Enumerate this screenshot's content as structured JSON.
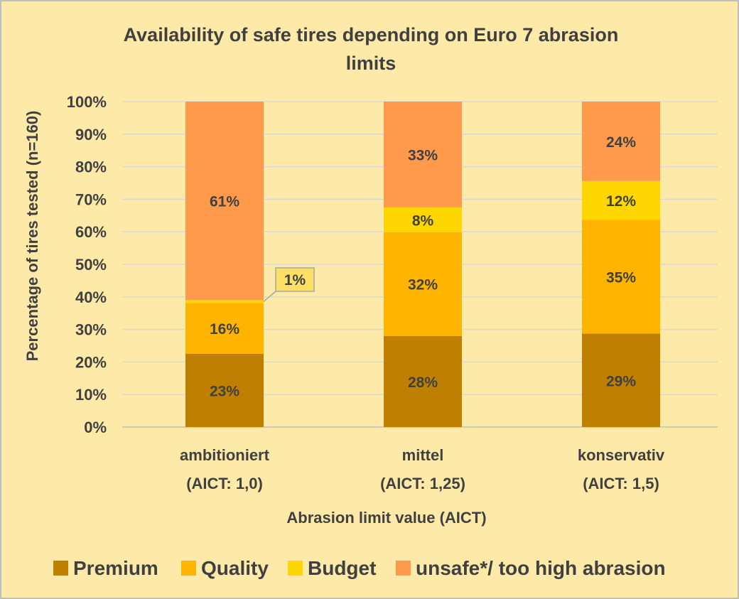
{
  "chart_data": {
    "type": "bar",
    "stacked": true,
    "title_lines": [
      "Availability of safe tires depending on Euro 7 abrasion",
      "limits"
    ],
    "ylabel": "Percentage of tires tested (n=160)",
    "xlabel": "Abrasion limit value (AICT)",
    "ylim": [
      0,
      100
    ],
    "yticks": [
      "0%",
      "10%",
      "20%",
      "30%",
      "40%",
      "50%",
      "60%",
      "70%",
      "80%",
      "90%",
      "100%"
    ],
    "grid": true,
    "legend_position": "bottom",
    "categories": [
      [
        "ambitioniert",
        "(AICT: 1,0)"
      ],
      [
        "mittel",
        "(AICT: 1,25)"
      ],
      [
        "konservativ",
        "(AICT: 1,5)"
      ]
    ],
    "series": [
      {
        "name": "Premium",
        "color": "#bf7f00",
        "values": [
          22.5,
          28,
          28.7
        ],
        "labels": [
          "23%",
          "28%",
          "29%"
        ]
      },
      {
        "name": "Quality",
        "color": "#ffb400",
        "values": [
          15.6,
          31.9,
          35
        ],
        "labels": [
          "16%",
          "32%",
          "35%"
        ]
      },
      {
        "name": "Budget",
        "color": "#ffd700",
        "values": [
          0.9,
          7.6,
          11.9
        ],
        "labels": [
          "1%",
          "8%",
          "12%"
        ]
      },
      {
        "name": "unsafe*/ too high abrasion",
        "color": "#ff9a4d",
        "values": [
          61,
          32.5,
          24.4
        ],
        "labels": [
          "61%",
          "33%",
          "24%"
        ]
      }
    ],
    "callout": {
      "series": 2,
      "category": 0,
      "text": "1%"
    }
  }
}
